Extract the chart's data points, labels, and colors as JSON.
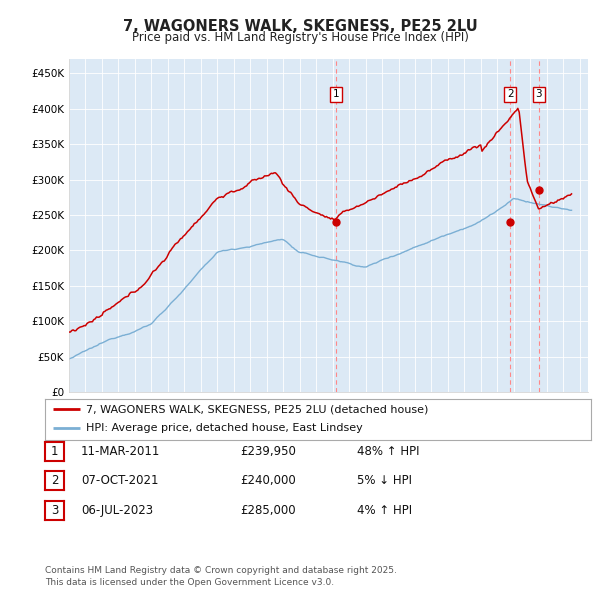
{
  "title": "7, WAGONERS WALK, SKEGNESS, PE25 2LU",
  "subtitle": "Price paid vs. HM Land Registry's House Price Index (HPI)",
  "ylim": [
    0,
    470000
  ],
  "yticks": [
    0,
    50000,
    100000,
    150000,
    200000,
    250000,
    300000,
    350000,
    400000,
    450000
  ],
  "ytick_labels": [
    "£0",
    "£50K",
    "£100K",
    "£150K",
    "£200K",
    "£250K",
    "£300K",
    "£350K",
    "£400K",
    "£450K"
  ],
  "xlim_start": 1995.0,
  "xlim_end": 2026.5,
  "fig_bg_color": "#ffffff",
  "plot_bg_color": "#dce9f5",
  "red_line_color": "#cc0000",
  "blue_line_color": "#7bafd4",
  "vline_color": "#ff8888",
  "marker_transactions": [
    {
      "n": "1",
      "year": 2011.19,
      "value": 239950
    },
    {
      "n": "2",
      "year": 2021.77,
      "value": 240000
    },
    {
      "n": "3",
      "year": 2023.51,
      "value": 285000
    }
  ],
  "legend_entries": [
    {
      "label": "7, WAGONERS WALK, SKEGNESS, PE25 2LU (detached house)",
      "color": "#cc0000"
    },
    {
      "label": "HPI: Average price, detached house, East Lindsey",
      "color": "#7bafd4"
    }
  ],
  "table_data": [
    {
      "n": "1",
      "date": "11-MAR-2011",
      "price": "£239,950",
      "hpi": "48% ↑ HPI"
    },
    {
      "n": "2",
      "date": "07-OCT-2021",
      "price": "£240,000",
      "hpi": "5% ↓ HPI"
    },
    {
      "n": "3",
      "date": "06-JUL-2023",
      "price": "£285,000",
      "hpi": "4% ↑ HPI"
    }
  ],
  "footnote": "Contains HM Land Registry data © Crown copyright and database right 2025.\nThis data is licensed under the Open Government Licence v3.0.",
  "title_fontsize": 10.5,
  "subtitle_fontsize": 8.5,
  "tick_fontsize": 7.5,
  "legend_fontsize": 8,
  "table_fontsize": 8.5,
  "footnote_fontsize": 6.5
}
